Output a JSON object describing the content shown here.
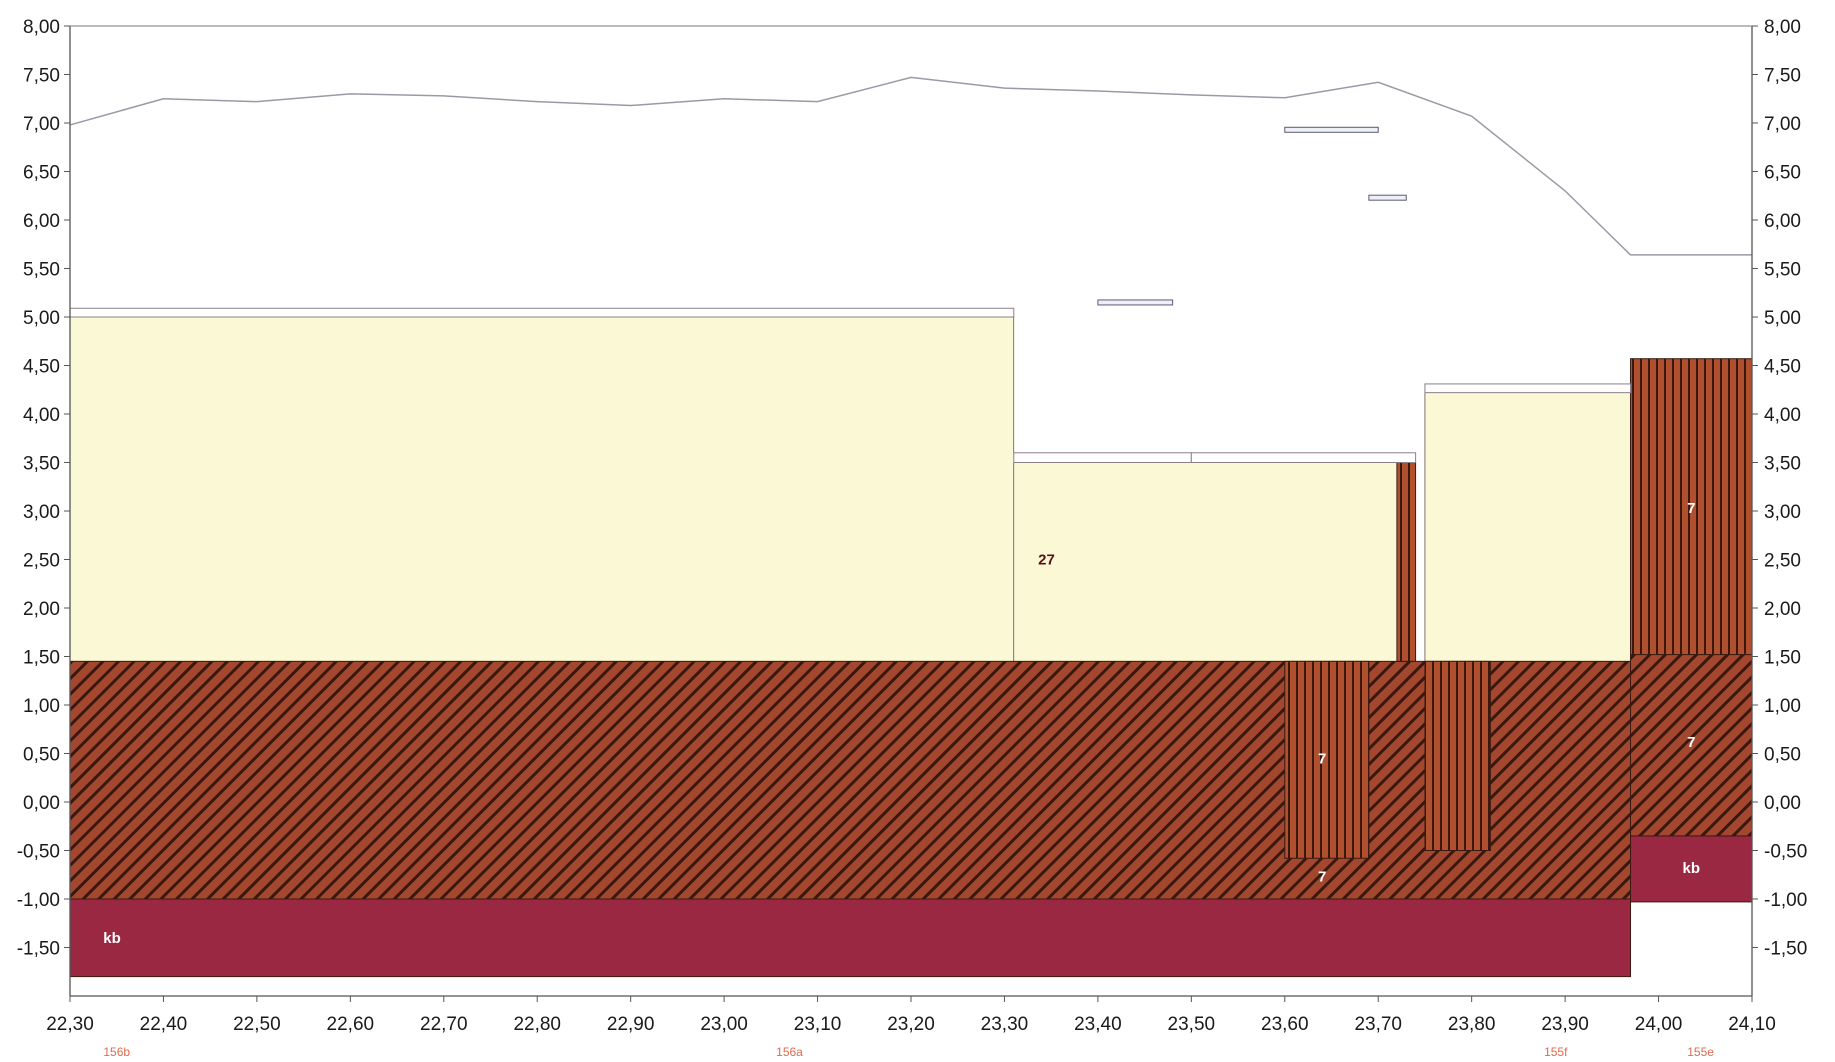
{
  "chart_data": {
    "type": "geological-profile",
    "x_axis": {
      "range": [
        22.3,
        24.1
      ],
      "ticks": [
        "22,30",
        "22,40",
        "22,50",
        "22,60",
        "22,70",
        "22,80",
        "22,90",
        "23,00",
        "23,10",
        "23,20",
        "23,30",
        "23,40",
        "23,50",
        "23,60",
        "23,70",
        "23,80",
        "23,90",
        "24,00",
        "24,10"
      ]
    },
    "y_axis": {
      "range": [
        -2.0,
        8.0
      ],
      "ticks": [
        "8,00",
        "7,50",
        "7,00",
        "6,50",
        "6,00",
        "5,50",
        "5,00",
        "4,50",
        "4,00",
        "3,50",
        "3,00",
        "2,50",
        "2,00",
        "1,50",
        "1,00",
        "0,50",
        "0,00",
        "-0,50",
        "-1,00",
        "-1,50"
      ],
      "both_sides": true
    },
    "surface_line": {
      "x": [
        22.3,
        22.4,
        22.5,
        22.6,
        22.7,
        22.8,
        22.9,
        23.0,
        23.1,
        23.2,
        23.3,
        23.4,
        23.5,
        23.6,
        23.7,
        23.8,
        23.9,
        23.97,
        24.1
      ],
      "y": [
        6.98,
        7.25,
        7.22,
        7.3,
        7.28,
        7.22,
        7.18,
        7.25,
        7.22,
        7.47,
        7.36,
        7.33,
        7.29,
        7.26,
        7.42,
        7.07,
        6.3,
        5.64,
        5.64
      ]
    },
    "layers": [
      {
        "type": "fill",
        "color": "#fbf8d6",
        "x0": 22.3,
        "x1": 23.31,
        "y0": 1.45,
        "y1": 5.0
      },
      {
        "type": "fill",
        "color": "#fbf8d6",
        "x0": 23.31,
        "x1": 23.72,
        "y0": 1.45,
        "y1": 3.5
      },
      {
        "type": "fill",
        "color": "#fbf8d6",
        "x0": 23.75,
        "x1": 23.97,
        "y0": 1.45,
        "y1": 4.22
      },
      {
        "type": "diagonal",
        "color": "#a0462e",
        "x0": 22.3,
        "x1": 23.97,
        "y0": -1.0,
        "y1": 1.45
      },
      {
        "type": "diagonal",
        "color": "#a0462e",
        "x0": 23.97,
        "x1": 24.1,
        "y0": -0.35,
        "y1": 1.52
      },
      {
        "type": "vertical",
        "color": "#a0462e",
        "x0": 23.6,
        "x1": 23.69,
        "y0": -0.58,
        "y1": 1.45
      },
      {
        "type": "vertical",
        "color": "#a0462e",
        "x0": 23.75,
        "x1": 23.82,
        "y0": -0.5,
        "y1": 1.45
      },
      {
        "type": "vertical",
        "color": "#a0462e",
        "x0": 23.72,
        "x1": 23.74,
        "y0": 1.45,
        "y1": 3.5
      },
      {
        "type": "vertical",
        "color": "#a0462e",
        "x0": 23.97,
        "x1": 24.1,
        "y0": 1.52,
        "y1": 4.57
      },
      {
        "type": "solid",
        "color": "#9b2843",
        "x0": 22.3,
        "x1": 23.97,
        "y0": -1.8,
        "y1": -1.0
      },
      {
        "type": "solid",
        "color": "#9b2843",
        "x0": 23.97,
        "x1": 24.1,
        "y0": -1.03,
        "y1": -0.35
      }
    ],
    "top_strips": [
      {
        "x0": 22.3,
        "x1": 23.31,
        "y0": 5.0,
        "y1": 5.09
      },
      {
        "x0": 23.31,
        "x1": 23.5,
        "y0": 3.5,
        "y1": 3.6
      },
      {
        "x0": 23.5,
        "x1": 23.74,
        "y0": 3.5,
        "y1": 3.6
      },
      {
        "x0": 23.75,
        "x1": 23.97,
        "y0": 4.22,
        "y1": 4.31
      }
    ],
    "markers": [
      {
        "x0": 23.4,
        "x1": 23.48,
        "y": 5.15
      },
      {
        "x0": 23.6,
        "x1": 23.7,
        "y": 6.93
      },
      {
        "x0": 23.69,
        "x1": 23.73,
        "y": 6.23
      }
    ],
    "layer_labels": [
      {
        "text": "27",
        "x": 23.345,
        "y": 2.5,
        "color": "#5a1010"
      },
      {
        "text": "7",
        "x": 23.64,
        "y": 0.45,
        "color": "#ffffff"
      },
      {
        "text": "7",
        "x": 23.64,
        "y": -0.77,
        "color": "#ffffff"
      },
      {
        "text": "7",
        "x": 24.035,
        "y": 3.03,
        "color": "#ffffff"
      },
      {
        "text": "7",
        "x": 24.035,
        "y": 0.62,
        "color": "#ffffff"
      },
      {
        "text": "kb",
        "x": 22.345,
        "y": -1.4,
        "color": "#ffffff"
      },
      {
        "text": "kb",
        "x": 24.035,
        "y": -0.68,
        "color": "#ffffff"
      }
    ],
    "borehole_labels": [
      {
        "text": "156b",
        "x": 22.35
      },
      {
        "text": "156a",
        "x": 23.07
      },
      {
        "text": "155f",
        "x": 23.89
      },
      {
        "text": "155e",
        "x": 24.045
      }
    ]
  }
}
